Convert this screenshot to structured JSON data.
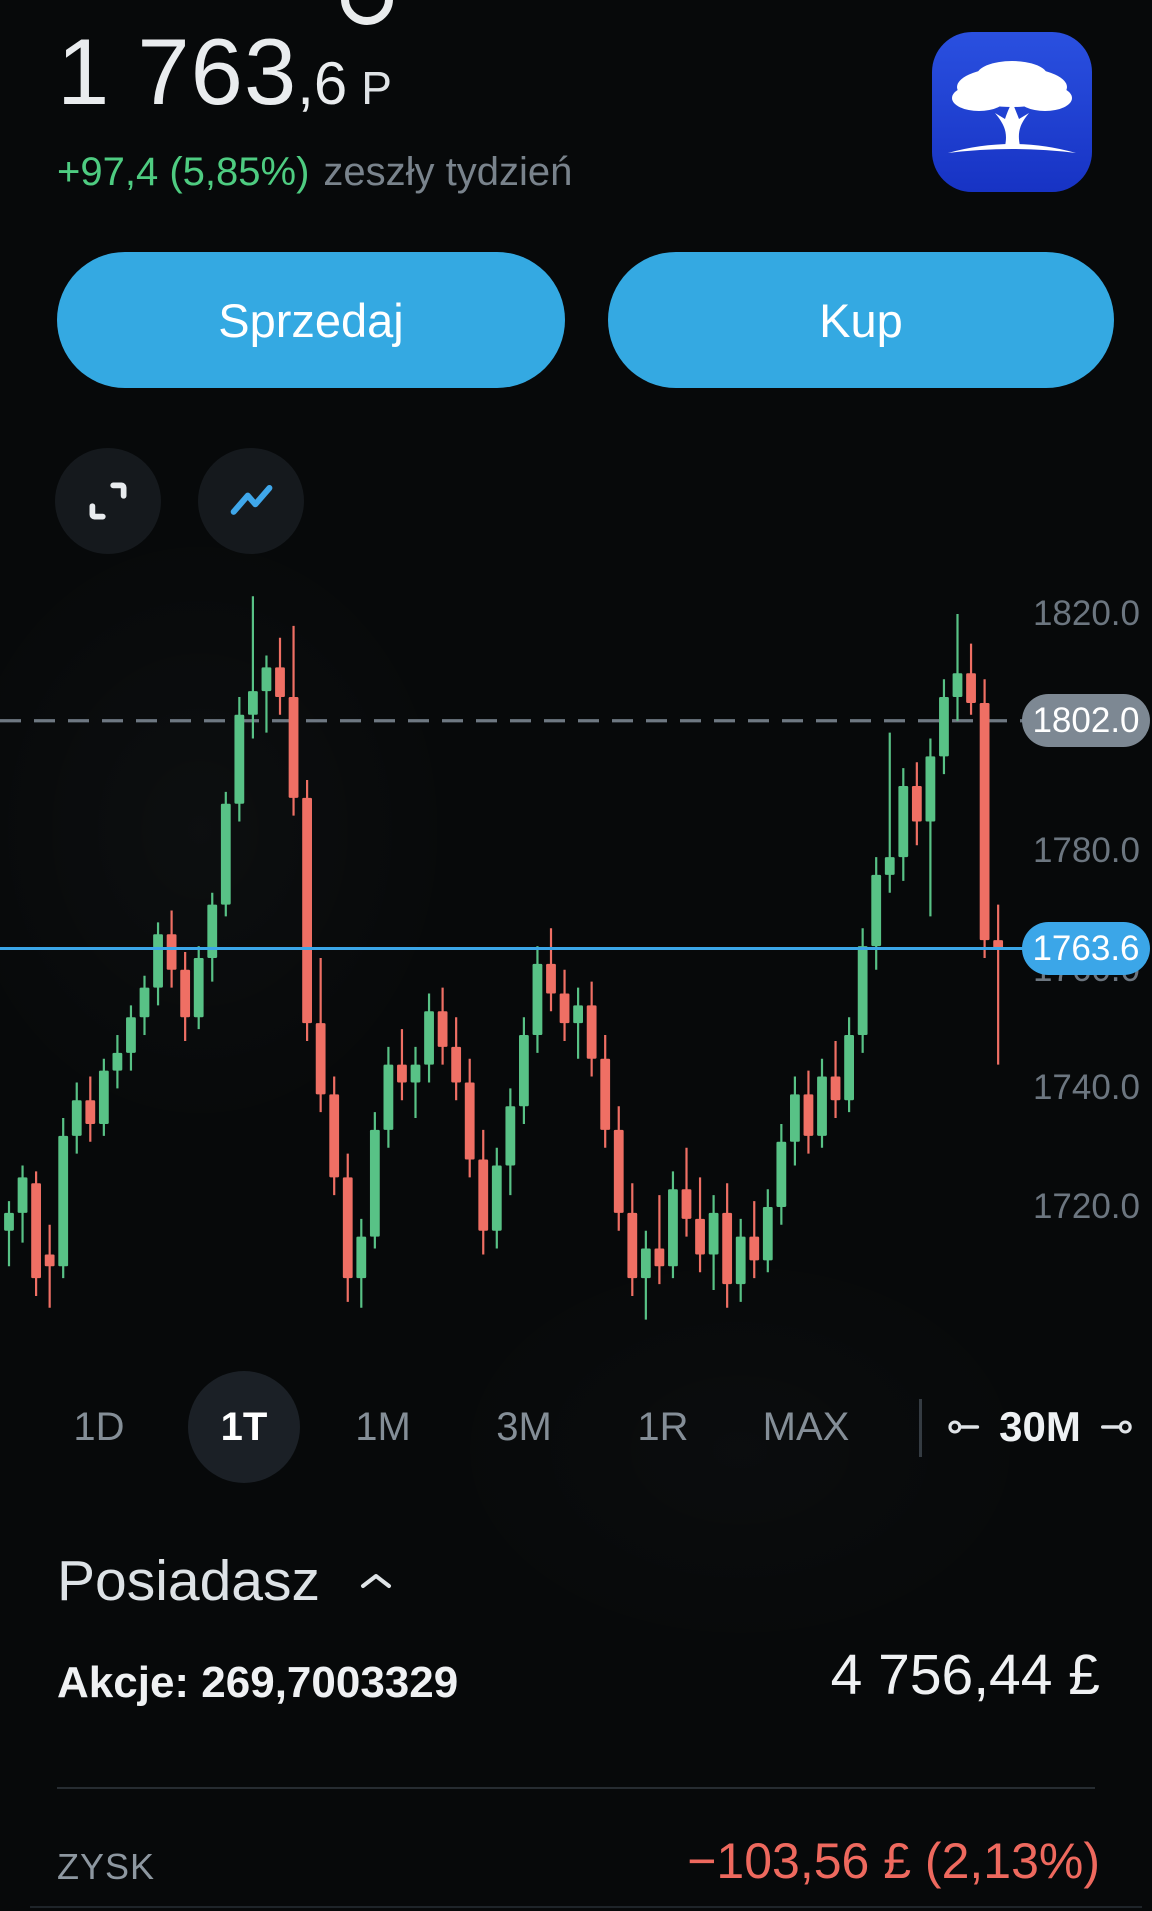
{
  "header": {
    "price_int": "1 763",
    "price_frac": ",6",
    "price_unit": "P",
    "change": "+97,4 (5,85%)",
    "period": "zeszły tydzień"
  },
  "actions": {
    "sell": "Sprzedaj",
    "buy": "Kup"
  },
  "chart_data": {
    "type": "candlestick",
    "range_selected": "1T",
    "interval": "30M",
    "ylim": [
      1698,
      1828
    ],
    "grid": false,
    "y_axis": {
      "labels": [
        "1820.0",
        "1780.0",
        "1760.0",
        "1740.0",
        "1720.0"
      ]
    },
    "reference_lines": {
      "dashed_price": 1802.0,
      "current_price": 1763.6
    },
    "price_tags": {
      "high": {
        "label": "1802.0",
        "color": "#7d8893"
      },
      "current": {
        "label": "1763.6",
        "color": "#3ba6e8"
      }
    },
    "candles": [
      [
        1716,
        1721,
        1710,
        1719
      ],
      [
        1719,
        1727,
        1714,
        1725
      ],
      [
        1724,
        1726,
        1705,
        1708
      ],
      [
        1712,
        1717,
        1703,
        1710
      ],
      [
        1710,
        1735,
        1708,
        1732
      ],
      [
        1732,
        1741,
        1729,
        1738
      ],
      [
        1738,
        1742,
        1731,
        1734
      ],
      [
        1734,
        1745,
        1732,
        1743
      ],
      [
        1743,
        1749,
        1740,
        1746
      ],
      [
        1746,
        1754,
        1743,
        1752
      ],
      [
        1752,
        1759,
        1749,
        1757
      ],
      [
        1757,
        1768,
        1754,
        1766
      ],
      [
        1766,
        1770,
        1757,
        1760
      ],
      [
        1760,
        1763,
        1748,
        1752
      ],
      [
        1752,
        1764,
        1750,
        1762
      ],
      [
        1762,
        1773,
        1758,
        1771
      ],
      [
        1771,
        1790,
        1769,
        1788
      ],
      [
        1788,
        1806,
        1785,
        1803
      ],
      [
        1803,
        1823,
        1799,
        1807
      ],
      [
        1807,
        1813,
        1800,
        1811
      ],
      [
        1811,
        1816,
        1803,
        1806
      ],
      [
        1806,
        1818,
        1786,
        1789
      ],
      [
        1789,
        1792,
        1748,
        1751
      ],
      [
        1751,
        1762,
        1736,
        1739
      ],
      [
        1739,
        1742,
        1722,
        1725
      ],
      [
        1725,
        1729,
        1704,
        1708
      ],
      [
        1708,
        1718,
        1703,
        1715
      ],
      [
        1715,
        1736,
        1713,
        1733
      ],
      [
        1733,
        1747,
        1730,
        1744
      ],
      [
        1744,
        1750,
        1738,
        1741
      ],
      [
        1741,
        1747,
        1735,
        1744
      ],
      [
        1744,
        1756,
        1741,
        1753
      ],
      [
        1753,
        1757,
        1744,
        1747
      ],
      [
        1747,
        1752,
        1738,
        1741
      ],
      [
        1741,
        1745,
        1725,
        1728
      ],
      [
        1728,
        1733,
        1712,
        1716
      ],
      [
        1716,
        1730,
        1713,
        1727
      ],
      [
        1727,
        1740,
        1722,
        1737
      ],
      [
        1737,
        1752,
        1734,
        1749
      ],
      [
        1749,
        1764,
        1746,
        1761
      ],
      [
        1761,
        1767,
        1753,
        1756
      ],
      [
        1756,
        1760,
        1748,
        1751
      ],
      [
        1751,
        1757,
        1745,
        1754
      ],
      [
        1754,
        1758,
        1742,
        1745
      ],
      [
        1745,
        1749,
        1730,
        1733
      ],
      [
        1733,
        1737,
        1716,
        1719
      ],
      [
        1719,
        1724,
        1705,
        1708
      ],
      [
        1708,
        1716,
        1701,
        1713
      ],
      [
        1713,
        1722,
        1707,
        1710
      ],
      [
        1710,
        1726,
        1708,
        1723
      ],
      [
        1723,
        1730,
        1715,
        1718
      ],
      [
        1718,
        1725,
        1709,
        1712
      ],
      [
        1712,
        1722,
        1706,
        1719
      ],
      [
        1719,
        1724,
        1703,
        1707
      ],
      [
        1707,
        1718,
        1704,
        1715
      ],
      [
        1715,
        1721,
        1708,
        1711
      ],
      [
        1711,
        1723,
        1709,
        1720
      ],
      [
        1720,
        1734,
        1717,
        1731
      ],
      [
        1731,
        1742,
        1727,
        1739
      ],
      [
        1739,
        1743,
        1729,
        1732
      ],
      [
        1732,
        1745,
        1730,
        1742
      ],
      [
        1742,
        1748,
        1735,
        1738
      ],
      [
        1738,
        1752,
        1736,
        1749
      ],
      [
        1749,
        1767,
        1746,
        1764
      ],
      [
        1764,
        1779,
        1760,
        1776
      ],
      [
        1776,
        1800,
        1773,
        1779
      ],
      [
        1779,
        1794,
        1775,
        1791
      ],
      [
        1791,
        1795,
        1781,
        1785
      ],
      [
        1785,
        1799,
        1769,
        1796
      ],
      [
        1796,
        1809,
        1793,
        1806
      ],
      [
        1806,
        1820,
        1802,
        1810
      ],
      [
        1810,
        1815,
        1803,
        1805
      ],
      [
        1805,
        1809,
        1762,
        1765
      ],
      [
        1765,
        1771,
        1744,
        1763.6
      ]
    ]
  },
  "timeframes": {
    "items": [
      "1D",
      "1T",
      "1M",
      "3M",
      "1R",
      "MAX"
    ],
    "active": "1T",
    "interval_label": "30M"
  },
  "position": {
    "title": "Posiadasz",
    "shares": "Akcje: 269,7003329",
    "value": "4 756,44 £"
  },
  "profit": {
    "label": "ZYSK",
    "value": "−103,56 £ (2,13%)"
  },
  "colors": {
    "candle_green": "#58c286",
    "candle_red": "#ef6f64",
    "accent_blue": "#34a9e2",
    "line_blue": "#3ba6e8",
    "dashed_gray": "#6e7882",
    "loss_red": "#ee695e",
    "gain_green": "#4ecc81",
    "logo_blue": "#1d3fd0"
  }
}
